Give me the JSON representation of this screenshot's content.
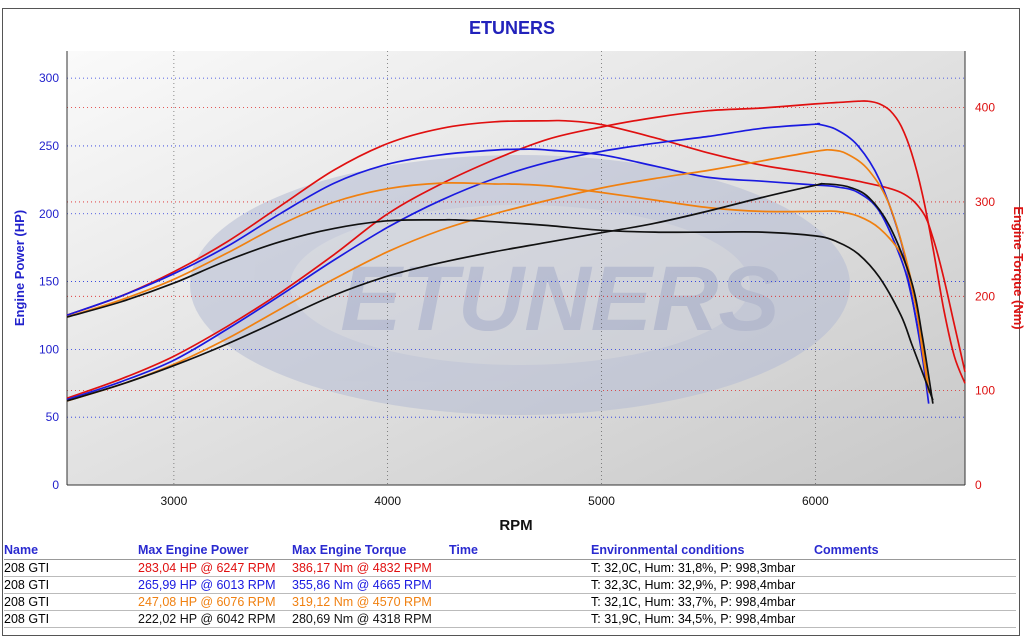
{
  "chart_data": {
    "type": "line",
    "title": "ETUNERS",
    "xlabel": "RPM",
    "ylabel_left": "Engine Power (HP)",
    "ylabel_right": "Engine Torque (Nm)",
    "xlim": [
      2500,
      6700
    ],
    "ylim_left": [
      0,
      320
    ],
    "ylim_right": [
      0,
      460
    ],
    "x_ticks": [
      3000,
      4000,
      5000,
      6000
    ],
    "y_ticks_left": [
      0,
      50,
      100,
      150,
      200,
      250,
      300
    ],
    "y_ticks_right": [
      0,
      100,
      200,
      300,
      400
    ],
    "grid": true,
    "watermark": "ETUNERS",
    "series": [
      {
        "name": "208 GTI",
        "color": "#e01010",
        "kind": "power",
        "axis": "left",
        "x": [
          2500,
          2750,
          3000,
          3250,
          3500,
          3750,
          4000,
          4250,
          4500,
          4750,
          5000,
          5250,
          5500,
          5750,
          6000,
          6100,
          6200,
          6247,
          6300,
          6350,
          6400,
          6450,
          6500,
          6550,
          6600,
          6650,
          6700
        ],
        "y": [
          64,
          78,
          95,
          117,
          142,
          170,
          200,
          222,
          240,
          255,
          264,
          271,
          276,
          278,
          281,
          282,
          283,
          283,
          281,
          276,
          265,
          245,
          215,
          175,
          130,
          95,
          75
        ]
      },
      {
        "name": "208 GTI",
        "color": "#e01010",
        "kind": "torque",
        "axis": "right",
        "x": [
          2500,
          2750,
          3000,
          3250,
          3500,
          3750,
          4000,
          4250,
          4500,
          4750,
          4832,
          5000,
          5250,
          5500,
          5750,
          6000,
          6200,
          6400,
          6500,
          6550,
          6600,
          6650,
          6700
        ],
        "y": [
          180,
          200,
          226,
          258,
          296,
          334,
          362,
          378,
          385,
          386,
          386,
          382,
          368,
          352,
          339,
          330,
          322,
          310,
          290,
          262,
          220,
          170,
          120
        ]
      },
      {
        "name": "208 GTI",
        "color": "#1a1ae0",
        "kind": "power",
        "axis": "left",
        "x": [
          2500,
          2750,
          3000,
          3250,
          3500,
          3750,
          4000,
          4250,
          4500,
          4750,
          5000,
          5250,
          5500,
          5750,
          6000,
          6013,
          6100,
          6200,
          6300,
          6400,
          6450,
          6500,
          6530
        ],
        "y": [
          63,
          76,
          92,
          115,
          140,
          166,
          190,
          210,
          226,
          238,
          246,
          252,
          257,
          263,
          266,
          266,
          262,
          250,
          225,
          180,
          140,
          95,
          60
        ]
      },
      {
        "name": "208 GTI",
        "color": "#1a1ae0",
        "kind": "torque",
        "axis": "right",
        "x": [
          2500,
          2750,
          3000,
          3250,
          3500,
          3750,
          4000,
          4250,
          4500,
          4665,
          4750,
          5000,
          5250,
          5500,
          5750,
          6000,
          6100,
          6200,
          6300,
          6400,
          6450,
          6500,
          6530
        ],
        "y": [
          180,
          200,
          224,
          253,
          288,
          320,
          340,
          350,
          355,
          356,
          355,
          350,
          338,
          326,
          322,
          318,
          316,
          310,
          290,
          240,
          200,
          140,
          100
        ]
      },
      {
        "name": "208 GTI",
        "color": "#f08010",
        "kind": "power",
        "axis": "left",
        "x": [
          2500,
          2750,
          3000,
          3250,
          3500,
          3750,
          4000,
          4250,
          4500,
          4750,
          5000,
          5250,
          5500,
          5750,
          6000,
          6076,
          6150,
          6250,
          6350,
          6450,
          6500,
          6530
        ],
        "y": [
          62,
          74,
          89,
          108,
          130,
          152,
          172,
          188,
          200,
          210,
          219,
          226,
          232,
          239,
          246,
          247,
          244,
          232,
          205,
          150,
          100,
          68
        ]
      },
      {
        "name": "208 GTI",
        "color": "#f08010",
        "kind": "torque",
        "axis": "right",
        "x": [
          2500,
          2750,
          3000,
          3250,
          3500,
          3750,
          4000,
          4250,
          4500,
          4570,
          4750,
          5000,
          5250,
          5500,
          5750,
          6000,
          6100,
          6200,
          6300,
          6400,
          6450,
          6500,
          6530
        ],
        "y": [
          178,
          196,
          218,
          246,
          276,
          300,
          314,
          320,
          319,
          319,
          317,
          310,
          302,
          294,
          290,
          290,
          290,
          285,
          272,
          245,
          210,
          150,
          100
        ]
      },
      {
        "name": "208 GTI",
        "color": "#111111",
        "kind": "power",
        "axis": "left",
        "x": [
          2500,
          2750,
          3000,
          3250,
          3500,
          3750,
          4000,
          4250,
          4500,
          4750,
          5000,
          5250,
          5500,
          5750,
          6000,
          6042,
          6150,
          6250,
          6350,
          6450,
          6500,
          6550
        ],
        "y": [
          62,
          74,
          88,
          104,
          122,
          140,
          154,
          164,
          172,
          179,
          186,
          193,
          202,
          212,
          221,
          222,
          220,
          212,
          190,
          150,
          110,
          60
        ]
      },
      {
        "name": "208 GTI",
        "color": "#111111",
        "kind": "torque",
        "axis": "right",
        "x": [
          2500,
          2750,
          3000,
          3250,
          3500,
          3750,
          4000,
          4250,
          4318,
          4500,
          4750,
          5000,
          5250,
          5500,
          5750,
          6000,
          6100,
          6200,
          6300,
          6400,
          6450,
          6500,
          6550
        ],
        "y": [
          178,
          194,
          214,
          238,
          258,
          272,
          280,
          281,
          281,
          279,
          275,
          270,
          268,
          268,
          268,
          264,
          258,
          245,
          220,
          180,
          150,
          120,
          90
        ]
      }
    ]
  },
  "results_table": {
    "headers": [
      "Name",
      "Max Engine Power",
      "Max Engine Torque",
      "Time",
      "Environmental conditions",
      "Comments"
    ],
    "rows": [
      {
        "name": "208 GTI",
        "power": "283,04 HP @ 6247 RPM",
        "torque": "386,17 Nm @ 4832 RPM",
        "time": "",
        "env": "T: 32,0C, Hum: 31,8%, P: 998,3mbar",
        "comments": "",
        "color": "#e01010"
      },
      {
        "name": "208 GTI",
        "power": "265,99 HP @ 6013 RPM",
        "torque": "355,86 Nm @ 4665 RPM",
        "time": "",
        "env": "T: 32,3C, Hum: 32,9%, P: 998,4mbar",
        "comments": "",
        "color": "#1a1ae0"
      },
      {
        "name": "208 GTI",
        "power": "247,08 HP @ 6076 RPM",
        "torque": "319,12 Nm @ 4570 RPM",
        "time": "",
        "env": "T: 32,1C, Hum: 33,7%, P: 998,4mbar",
        "comments": "",
        "color": "#f08010"
      },
      {
        "name": "208 GTI",
        "power": "222,02 HP @ 6042 RPM",
        "torque": "280,69 Nm @ 4318 RPM",
        "time": "",
        "env": "T: 31,9C, Hum: 34,5%, P: 998,4mbar",
        "comments": "",
        "color": "#111111"
      }
    ]
  }
}
